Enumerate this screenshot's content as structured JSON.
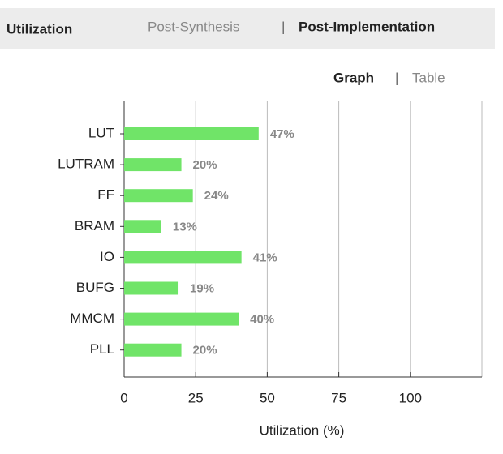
{
  "header": {
    "title": "Utilization",
    "tabs": [
      "Post-Synthesis",
      "Post-Implementation"
    ],
    "separator": "|"
  },
  "view_toggle": {
    "options": [
      "Graph",
      "Table"
    ],
    "separator": "|"
  },
  "chart_data": {
    "type": "bar",
    "orientation": "horizontal",
    "xlabel": "Utilization (%)",
    "categories": [
      "LUT",
      "LUTRAM",
      "FF",
      "BRAM",
      "IO",
      "BUFG",
      "MMCM",
      "PLL"
    ],
    "values": [
      47,
      20,
      24,
      13,
      41,
      19,
      40,
      20
    ],
    "value_labels": [
      "47%",
      "20%",
      "24%",
      "13%",
      "41%",
      "19%",
      "40%",
      "20%"
    ],
    "color": "#70e468",
    "xlim": [
      0,
      125
    ],
    "xticks": [
      0,
      25,
      50,
      75,
      100
    ],
    "grid": true
  }
}
